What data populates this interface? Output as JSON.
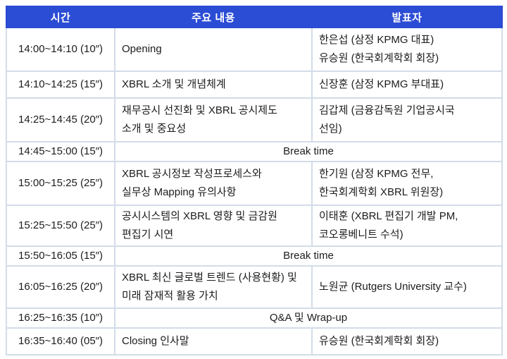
{
  "colors": {
    "header_bg": "#2b4cd4",
    "header_text": "#ffffff",
    "border": "#d3dce8",
    "body_text": "#1c1c1c"
  },
  "table": {
    "headers": {
      "time": "시간",
      "content": "주요 내용",
      "speaker": "발표자"
    },
    "rows": [
      {
        "time": "14:00~14:10 (10″)",
        "content": "Opening",
        "speaker": "한은섭 (삼정 KPMG 대표)\n유승원 (한국회계학회 회장)"
      },
      {
        "time": "14:10~14:25 (15″)",
        "content": "XBRL 소개 및 개념체계",
        "speaker": "신장훈 (삼정 KPMG 부대표)"
      },
      {
        "time": "14:25~14:45 (20″)",
        "content": "재무공시 선진화 및 XBRL 공시제도\n소개 및 중요성",
        "speaker": "김갑제 (금융감독원 기업공시국\n선임)"
      },
      {
        "time": "14:45~15:00 (15″)",
        "merged": "Break time"
      },
      {
        "time": "15:00~15:25 (25″)",
        "content": "XBRL 공시정보 작성프로세스와\n실무상 Mapping 유의사항",
        "speaker": "한기원 (삼정 KPMG 전무,\n한국회계학회 XBRL 위원장)"
      },
      {
        "time": "15:25~15:50 (25″)",
        "content": "공시시스템의 XBRL 영향 및 금감원\n편집기 시연",
        "speaker": "이태훈 (XBRL 편집기 개발 PM,\n코오롱베니트 수석)"
      },
      {
        "time": "15:50~16:05 (15″)",
        "merged": "Break time"
      },
      {
        "time": "16:05~16:25 (20″)",
        "content": "XBRL 최신 글로벌 트렌드 (사용현황) 및\n미래 잠재적 활용 가치",
        "speaker": "노원균 (Rutgers University 교수)"
      },
      {
        "time": "16:25~16:35 (10″)",
        "merged": "Q&A 및 Wrap-up"
      },
      {
        "time": "16:35~16:40 (05″)",
        "content": "Closing 인사말",
        "speaker": "유승원 (한국회계학회 회장)"
      }
    ]
  }
}
